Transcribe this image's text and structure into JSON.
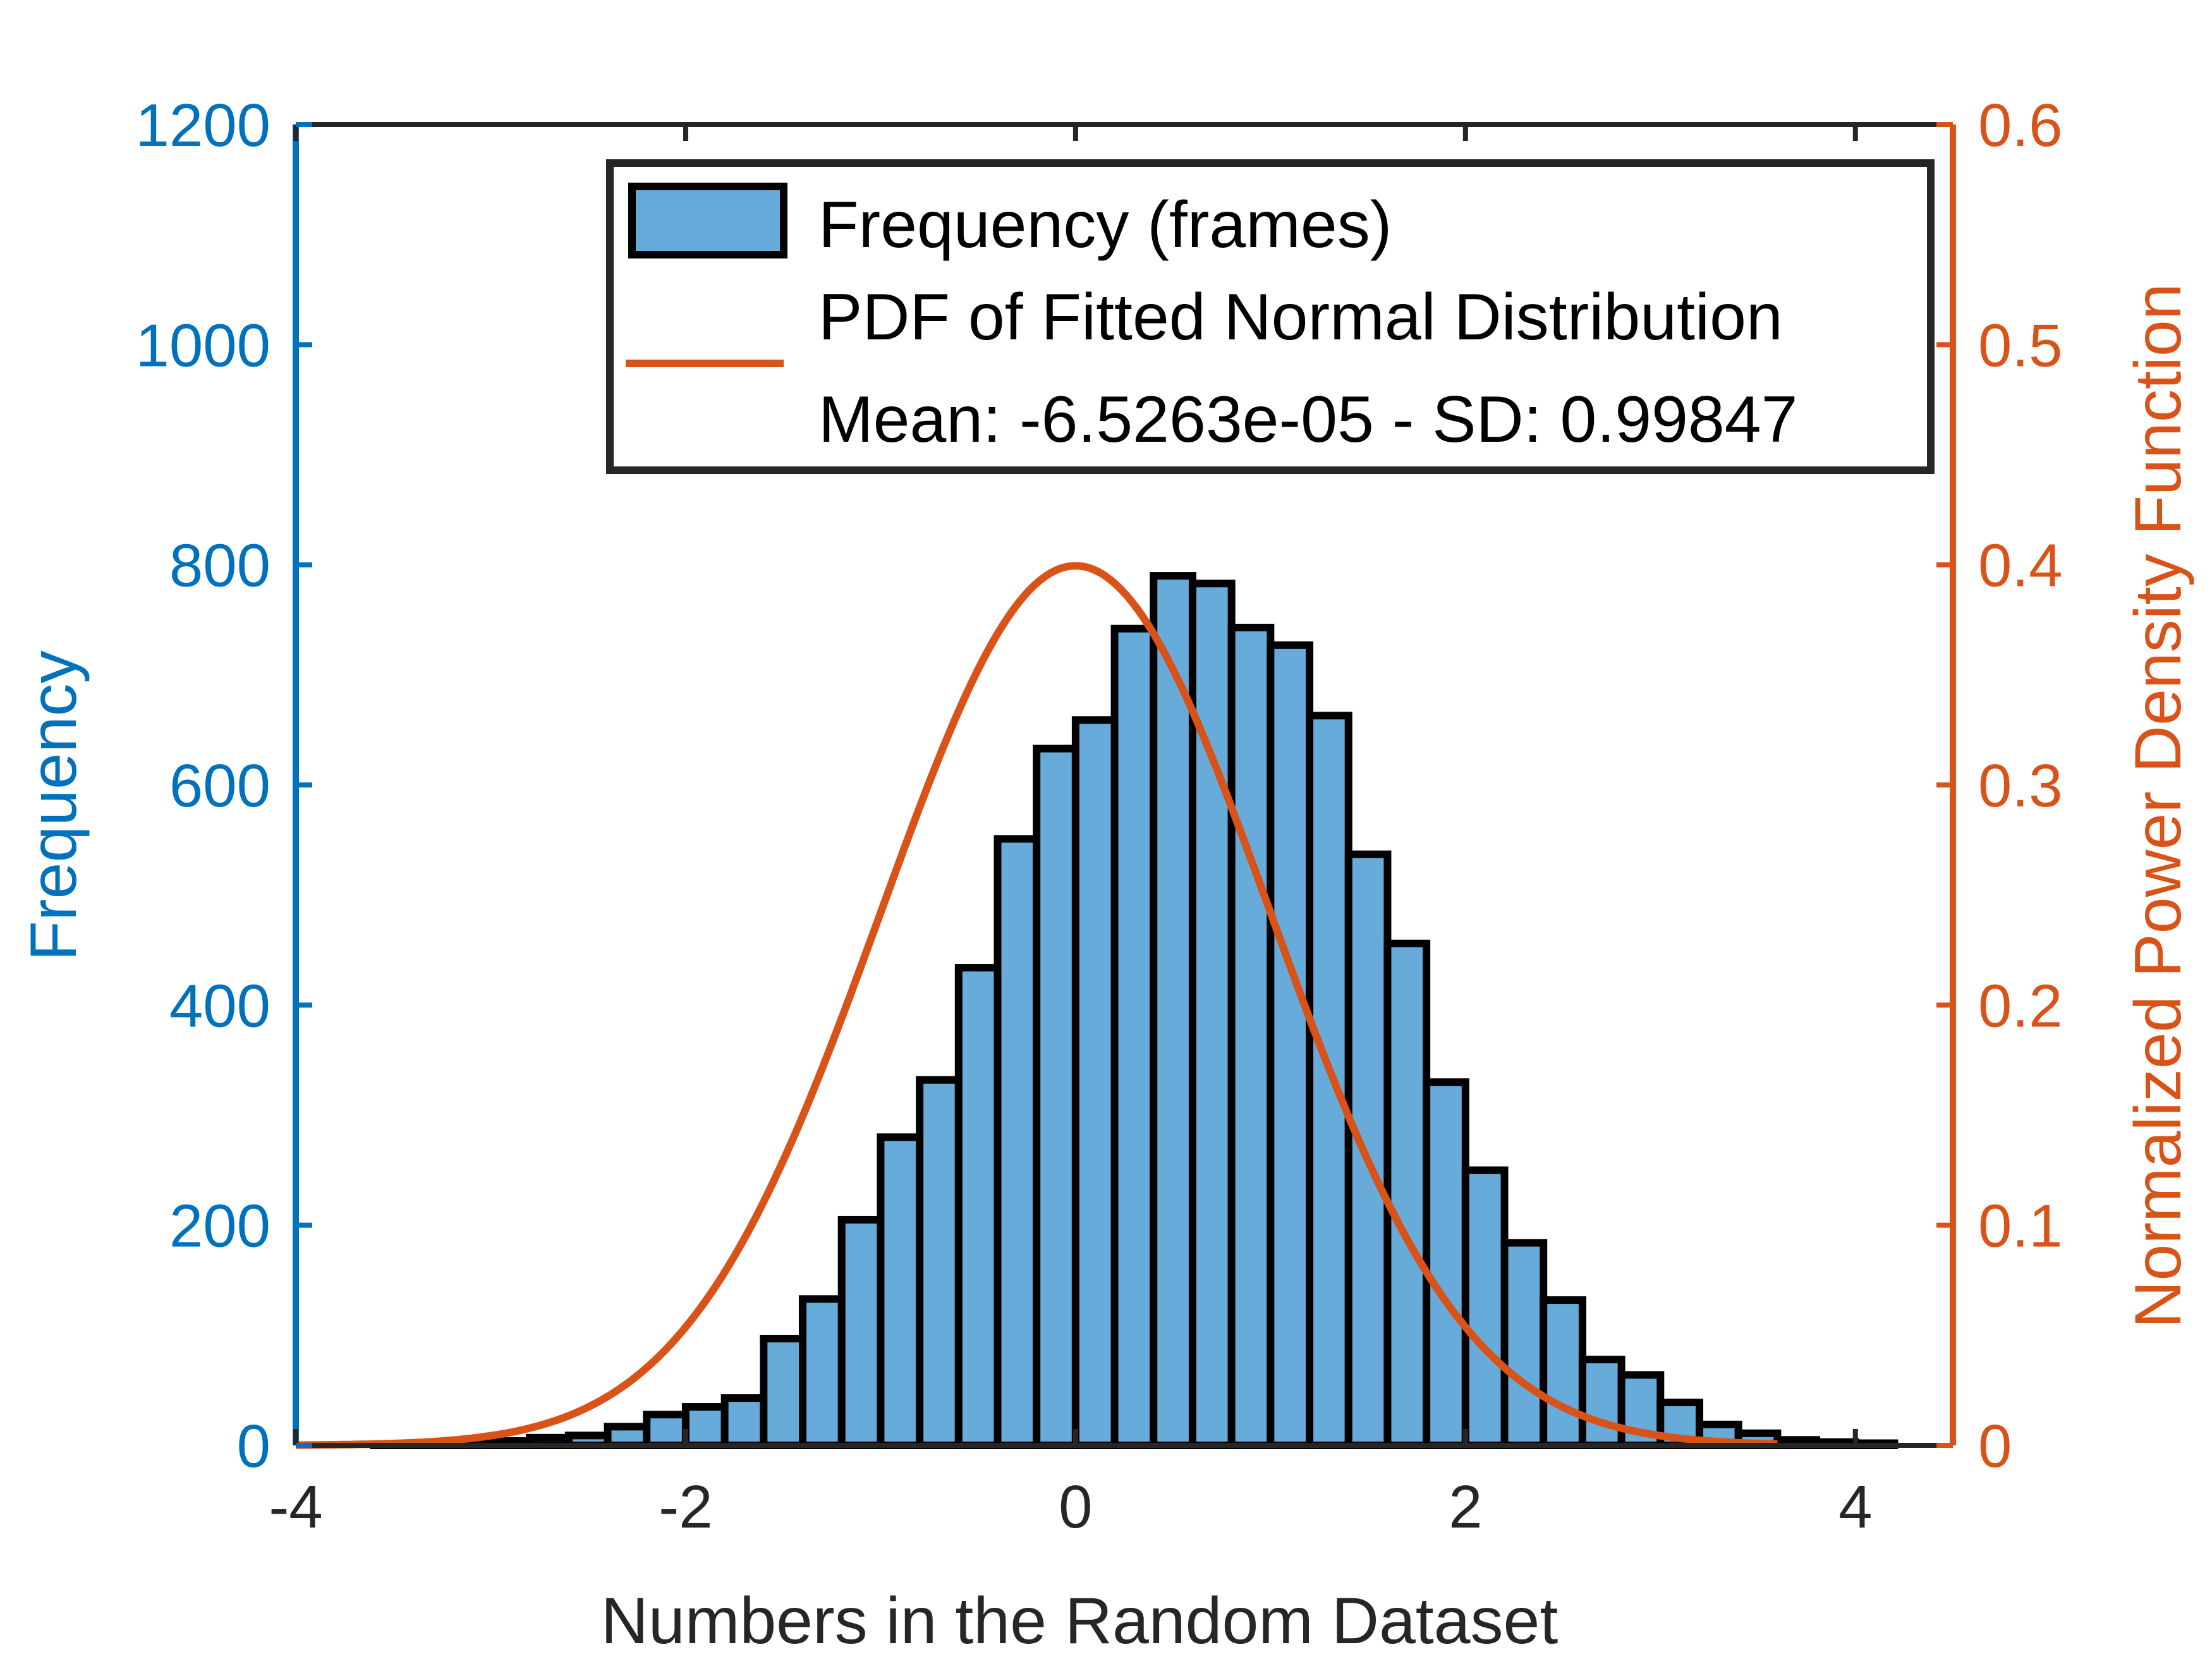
{
  "colors": {
    "left_axis": "#0072BD",
    "right_axis": "#D95319",
    "bar_fill": "#67ABDB",
    "bar_edge": "#000000",
    "curve": "#D95319",
    "frame": "#262626"
  },
  "chart_data": {
    "type": "bar",
    "title": "",
    "xlabel": "Numbers in the Random Dataset",
    "ylabel": "Frequency",
    "ylabel_right": "Normalized Power Density Function",
    "xlim": [
      -4,
      4.5
    ],
    "ylim": [
      0,
      1200
    ],
    "ylim_right": [
      0,
      0.6
    ],
    "x_ticks": [
      {
        "v": -4,
        "label": "-4"
      },
      {
        "v": -2,
        "label": "-2"
      },
      {
        "v": 0,
        "label": "0"
      },
      {
        "v": 2,
        "label": "2"
      },
      {
        "v": 4,
        "label": "4"
      }
    ],
    "y_ticks": [
      {
        "v": 0,
        "label": "0"
      },
      {
        "v": 200,
        "label": "200"
      },
      {
        "v": 400,
        "label": "400"
      },
      {
        "v": 600,
        "label": "600"
      },
      {
        "v": 800,
        "label": "800"
      },
      {
        "v": 1000,
        "label": "1000"
      },
      {
        "v": 1200,
        "label": "1200"
      }
    ],
    "y_ticks_right": [
      {
        "v": 0,
        "label": "0"
      },
      {
        "v": 0.1,
        "label": "0.1"
      },
      {
        "v": 0.2,
        "label": "0.2"
      },
      {
        "v": 0.3,
        "label": "0.3"
      },
      {
        "v": 0.4,
        "label": "0.4"
      },
      {
        "v": 0.5,
        "label": "0.5"
      },
      {
        "v": 0.6,
        "label": "0.6"
      }
    ],
    "grid": false,
    "legend_position": "top-right",
    "legend": [
      "Frequency (frames)",
      "PDF of Fitted Normal Distribution",
      "Mean: -6.5263e-05 - SD: 0.99847"
    ],
    "bin_width": 0.2,
    "bin_start": -3.6,
    "frequency": [
      1,
      2,
      3,
      4,
      7,
      9,
      17,
      28,
      35,
      43,
      97,
      133,
      205,
      280,
      332,
      434,
      551,
      633,
      659,
      742,
      790,
      783,
      743,
      727,
      663,
      537,
      456,
      330,
      250,
      184,
      132,
      78,
      64,
      39,
      19,
      11,
      5,
      3,
      2
    ],
    "pdf": {
      "name": "PDF of Fitted Normal Distribution",
      "mean": -6.5263e-05,
      "sd": 0.99847,
      "x_range": [
        -4,
        3.6
      ]
    }
  }
}
